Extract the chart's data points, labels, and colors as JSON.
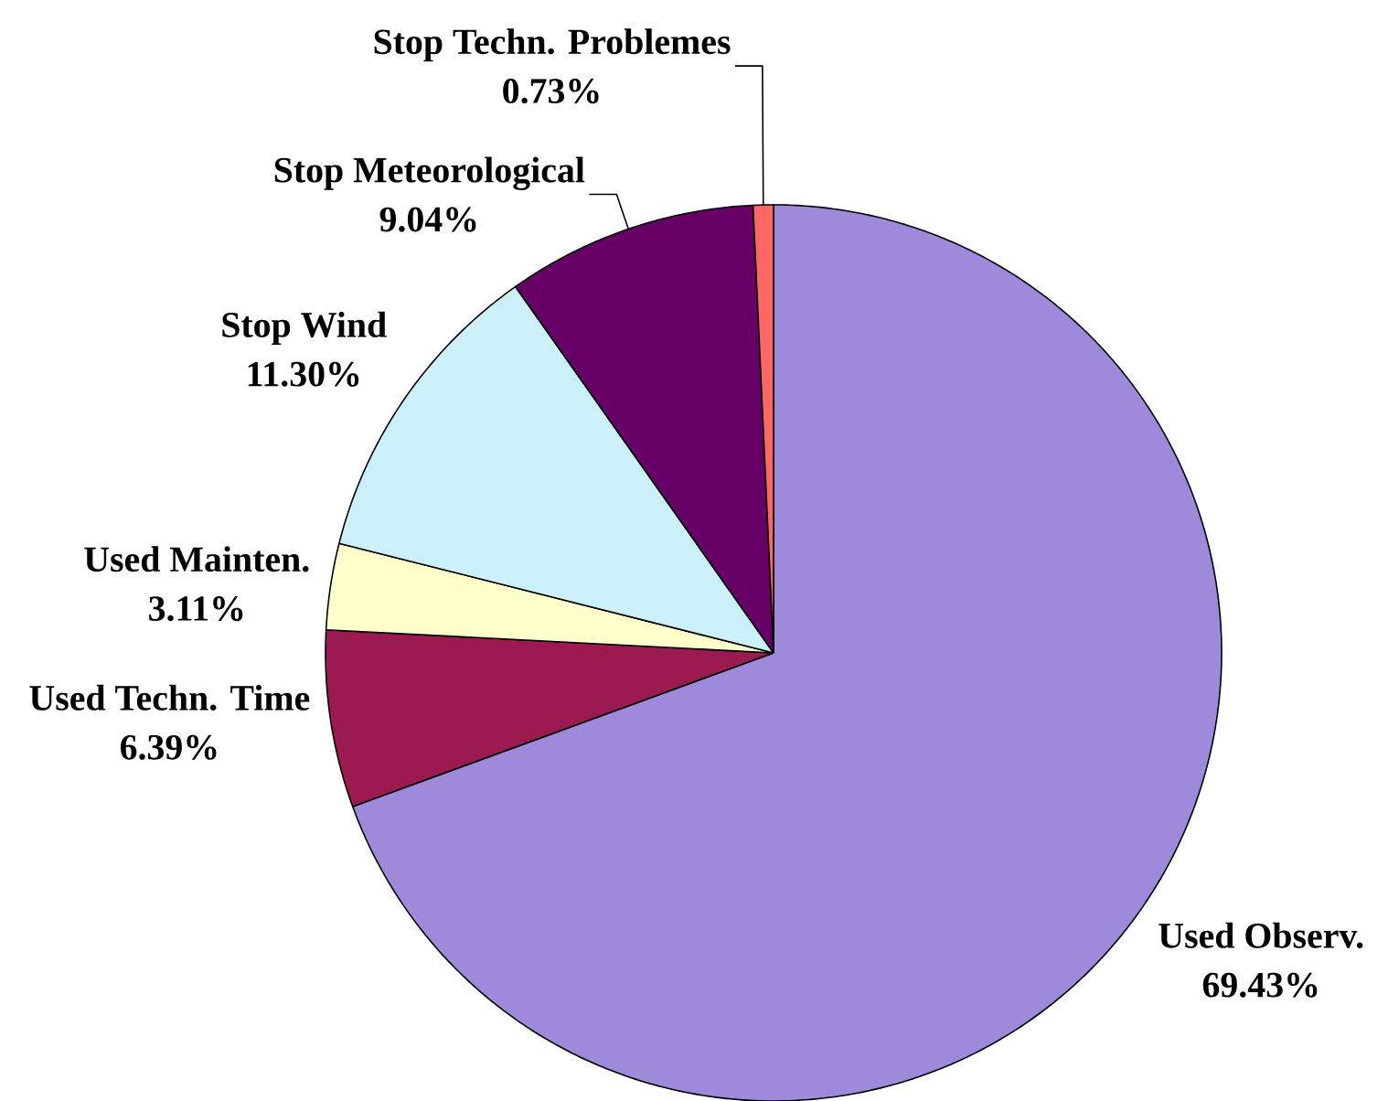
{
  "chart_data": {
    "type": "pie",
    "categories": [
      "Used Observ.",
      "Used Techn. Time",
      "Used Mainten.",
      "Stop Wind",
      "Stop Meteorological",
      "Stop Techn. Problemes"
    ],
    "values": [
      69.43,
      6.39,
      3.11,
      11.3,
      9.04,
      0.73
    ],
    "value_labels": [
      "69.43%",
      "6.39%",
      "3.11%",
      "11.30%",
      "9.04%",
      "0.73%"
    ],
    "colors": [
      "#9e89db",
      "#9b1b50",
      "#ffffcc",
      "#ccf0fa",
      "#660066",
      "#ff6666"
    ]
  }
}
